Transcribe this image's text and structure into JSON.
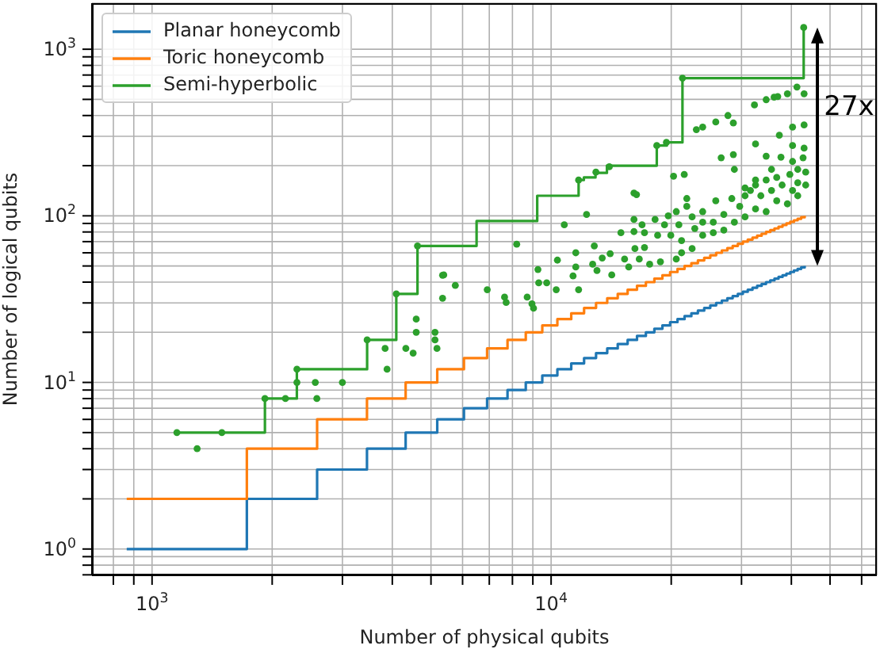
{
  "chart_data": {
    "type": "step",
    "xlabel": "Number of physical qubits",
    "ylabel": "Number of logical qubits",
    "log": "xy",
    "grid": true,
    "legend": "top left",
    "xlim": [
      707,
      65500
    ],
    "ylim": [
      0.695,
      1890
    ],
    "xticks": [
      {
        "value": 800,
        "label": null
      },
      {
        "value": 900,
        "label": null
      },
      {
        "value": 1000,
        "label": "10$^{3}$"
      },
      {
        "value": 2000,
        "label": null
      },
      {
        "value": 3000,
        "label": null
      },
      {
        "value": 4000,
        "label": null
      },
      {
        "value": 5000,
        "label": null
      },
      {
        "value": 6000,
        "label": null
      },
      {
        "value": 7000,
        "label": null
      },
      {
        "value": 8000,
        "label": null
      },
      {
        "value": 9000,
        "label": null
      },
      {
        "value": 10000,
        "label": "10$^{4}$"
      },
      {
        "value": 20000,
        "label": null
      },
      {
        "value": 30000,
        "label": null
      },
      {
        "value": 40000,
        "label": null
      },
      {
        "value": 50000,
        "label": null
      },
      {
        "value": 60000,
        "label": null
      }
    ],
    "yticks": [
      {
        "value": 0.7,
        "label": null
      },
      {
        "value": 0.8,
        "label": null
      },
      {
        "value": 0.9,
        "label": null
      },
      {
        "value": 1,
        "label": "10$^{0}$"
      },
      {
        "value": 2,
        "label": null
      },
      {
        "value": 3,
        "label": null
      },
      {
        "value": 4,
        "label": null
      },
      {
        "value": 5,
        "label": null
      },
      {
        "value": 6,
        "label": null
      },
      {
        "value": 7,
        "label": null
      },
      {
        "value": 8,
        "label": null
      },
      {
        "value": 9,
        "label": null
      },
      {
        "value": 10,
        "label": "10$^{1}$"
      },
      {
        "value": 20,
        "label": null
      },
      {
        "value": 30,
        "label": null
      },
      {
        "value": 40,
        "label": null
      },
      {
        "value": 50,
        "label": null
      },
      {
        "value": 60,
        "label": null
      },
      {
        "value": 70,
        "label": null
      },
      {
        "value": 80,
        "label": null
      },
      {
        "value": 90,
        "label": null
      },
      {
        "value": 100,
        "label": "10$^{2}$"
      },
      {
        "value": 200,
        "label": null
      },
      {
        "value": 300,
        "label": null
      },
      {
        "value": 400,
        "label": null
      },
      {
        "value": 500,
        "label": null
      },
      {
        "value": 600,
        "label": null
      },
      {
        "value": 700,
        "label": null
      },
      {
        "value": 800,
        "label": null
      },
      {
        "value": 900,
        "label": null
      },
      {
        "value": 1000,
        "label": "10$^{3}$"
      }
    ],
    "x": [
      864,
      1728,
      2592,
      3456,
      4320,
      5184,
      6048,
      6912,
      7776,
      8640,
      9504,
      10368,
      11232,
      12096,
      12960,
      13824,
      14688,
      15552,
      16416,
      17280,
      18144,
      19008,
      19872,
      20736,
      21600,
      22464,
      23328,
      24192,
      25056,
      25920,
      26784,
      27648,
      28512,
      29376,
      30240,
      31104,
      31968,
      32832,
      33696,
      34560,
      35424,
      36288,
      37152,
      38016,
      38880,
      39744,
      40608,
      41472,
      42336,
      43200
    ],
    "series": [
      {
        "name": "Planar honeycomb",
        "color": "#1f77b4",
        "marker": "none",
        "values": [
          1,
          2,
          3,
          4,
          5,
          6,
          7,
          8,
          9,
          10,
          11,
          12,
          13,
          14,
          15,
          16,
          17,
          18,
          19,
          20,
          21,
          22,
          23,
          24,
          25,
          26,
          27,
          28,
          29,
          30,
          31,
          32,
          33,
          34,
          35,
          36,
          37,
          38,
          39,
          40,
          41,
          42,
          43,
          44,
          45,
          46,
          47,
          48,
          49,
          50
        ]
      },
      {
        "name": "Toric honeycomb",
        "color": "#ff7f0e",
        "marker": "none",
        "values": [
          2,
          4,
          6,
          8,
          10,
          12,
          14,
          16,
          18,
          20,
          22,
          24,
          26,
          28,
          30,
          32,
          34,
          36,
          38,
          40,
          42,
          44,
          46,
          48,
          50,
          52,
          54,
          56,
          58,
          60,
          62,
          64,
          66,
          68,
          70,
          72,
          74,
          76,
          78,
          80,
          82,
          84,
          86,
          88,
          90,
          92,
          94,
          96,
          98,
          100
        ]
      },
      {
        "name": "Semi-hyperbolic",
        "color": "#2ca02c",
        "marker": "none",
        "x": [
          1154,
          1918,
          2306,
          3459,
          4093,
          4626,
          6505,
          9230,
          11720,
          12080,
          12920,
          13800,
          18400,
          19500,
          21340,
          42950
        ],
        "values": [
          5,
          8,
          12,
          18,
          34,
          66,
          93,
          132,
          164,
          170,
          181,
          200,
          264,
          276,
          671,
          1350
        ]
      },
      {
        "type": "scatter",
        "color": "#2ca02c",
        "marker": "circle",
        "x": [
          1154,
          1297,
          1496,
          1918,
          2159,
          2307,
          2307,
          2565,
          2588,
          2999,
          3459,
          3881,
          3837,
          4325,
          4511,
          4592,
          4592,
          5117,
          5117,
          5176,
          5346,
          5346,
          4093,
          4626,
          32330,
          34590,
          36210,
          36980,
          39100,
          41310,
          43050,
          23120,
          23980,
          25860,
          27740,
          28620,
          32530,
          37320,
          40280,
          43050,
          40280,
          43050,
          28620,
          26680,
          34590,
          37670,
          20270,
          21560,
          16130,
          16370,
          12270,
          10790,
          8200,
          5383,
          5754,
          6918,
          7645,
          7715,
          8710,
          8955,
          9036,
          9268,
          9311,
          9750,
          10300,
          10370,
          11530,
          11530,
          11720,
          11350,
          12830,
          12710,
          13030,
          14190,
          13430,
          14060,
          14960,
          15280,
          16130,
          16220,
          16130,
          16900,
          17140,
          17140,
          18220,
          18490,
          19240,
          19660,
          19950,
          20590,
          20900,
          21230,
          21880,
          21880,
          22560,
          22910,
          23980,
          23980,
          25490,
          25860,
          27090,
          28370,
          28790,
          29690,
          30620,
          31580,
          32530,
          33540,
          34590,
          35670,
          36760,
          37920,
          39650,
          41500,
          42800,
          43450,
          41500,
          39100,
          36760,
          34590,
          32530,
          30620,
          28790,
          27090,
          25490,
          23980,
          22560,
          21230,
          20590,
          18790,
          17660,
          16630,
          15650,
          30620,
          32530,
          35670,
          40280,
          43450,
          41500,
          40280,
          11720,
          12950,
          13990,
          18400,
          19450,
          21340,
          42950
        ],
        "values": [
          5,
          4,
          5,
          8,
          8,
          10,
          12,
          10,
          8,
          10,
          18,
          12,
          16,
          16,
          15,
          20,
          24,
          20,
          18,
          16,
          44,
          32,
          34,
          66,
          463,
          498,
          516,
          520,
          540,
          593,
          540,
          329,
          341,
          366,
          400,
          361,
          270,
          305,
          341,
          351,
          264,
          255,
          233,
          223,
          228,
          225,
          173,
          177,
          137,
          134,
          102,
          88.3,
          67.5,
          44.2,
          38.2,
          36,
          32.5,
          30.2,
          32.5,
          29.6,
          27.9,
          47.6,
          39.6,
          39.6,
          36,
          54.2,
          60,
          49.3,
          36,
          43.6,
          66,
          51.2,
          46.9,
          44.2,
          55.8,
          59.2,
          79.2,
          55,
          95.1,
          63.6,
          80.4,
          88.3,
          79.2,
          64.5,
          95.1,
          76.4,
          88.3,
          100,
          76.4,
          106,
          88.3,
          71,
          127,
          114,
          98.6,
          83.9,
          106,
          91.6,
          91.6,
          123,
          102,
          127,
          190,
          114,
          132,
          142,
          153,
          132,
          164,
          142,
          170,
          153,
          177,
          190,
          223,
          153,
          132,
          118,
          123,
          106,
          110,
          98.6,
          91.6,
          82.1,
          79.2,
          76.4,
          63.6,
          60,
          55,
          53,
          51.2,
          55,
          49.3,
          147,
          164,
          190,
          212,
          183,
          158,
          142,
          164,
          183,
          197,
          264,
          276,
          671,
          1350
        ]
      }
    ],
    "annotations": [
      "27x"
    ]
  }
}
